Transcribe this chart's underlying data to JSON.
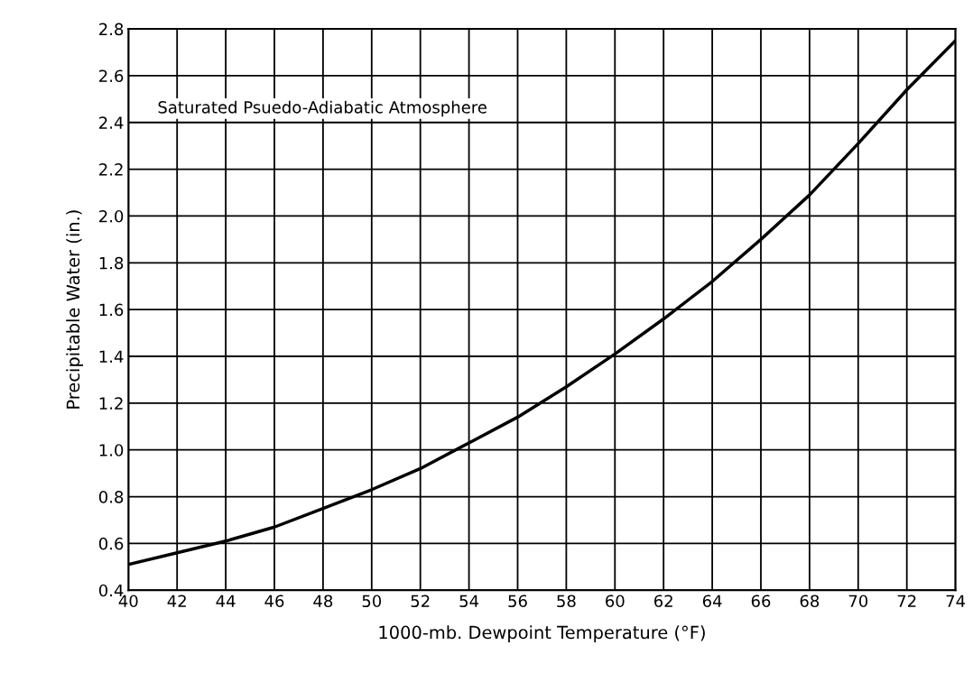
{
  "chart_data": {
    "type": "line",
    "xlabel": "1000-mb. Dewpoint Temperature (°F)",
    "ylabel": "Precipitable Water (in.)",
    "annotations": [
      "Saturated Psuedo-Adiabatic Atmosphere"
    ],
    "x": [
      40,
      42,
      44,
      46,
      48,
      50,
      52,
      54,
      56,
      58,
      60,
      62,
      64,
      66,
      68,
      70,
      72,
      74
    ],
    "series": [
      {
        "color": "#000000",
        "values": [
          0.51,
          0.56,
          0.61,
          0.67,
          0.75,
          0.83,
          0.92,
          1.03,
          1.14,
          1.27,
          1.41,
          1.56,
          1.72,
          1.9,
          2.09,
          2.31,
          2.54,
          2.75
        ]
      }
    ],
    "xlim": [
      40,
      74
    ],
    "xticks": [
      40,
      42,
      44,
      46,
      48,
      50,
      52,
      54,
      56,
      58,
      60,
      62,
      64,
      66,
      68,
      70,
      72,
      74
    ],
    "ylim": [
      0.4,
      2.8
    ],
    "yticks": [
      {
        "value": 0.4,
        "label": "0.4"
      },
      {
        "value": 0.6,
        "label": "0.6"
      },
      {
        "value": 0.8,
        "label": "0.8"
      },
      {
        "value": 1.0,
        "label": "1.0"
      },
      {
        "value": 1.2,
        "label": "1.2"
      },
      {
        "value": 1.4,
        "label": "1.4"
      },
      {
        "value": 1.6,
        "label": "1.6"
      },
      {
        "value": 1.8,
        "label": "1.8"
      },
      {
        "value": 2.0,
        "label": "2.0"
      },
      {
        "value": 2.2,
        "label": "2.2"
      },
      {
        "value": 2.4,
        "label": "2.4"
      },
      {
        "value": 2.6,
        "label": "2.6"
      },
      {
        "value": 2.8,
        "label": "2.8"
      }
    ],
    "grid": true,
    "marker": "none",
    "line_style": "solid"
  }
}
